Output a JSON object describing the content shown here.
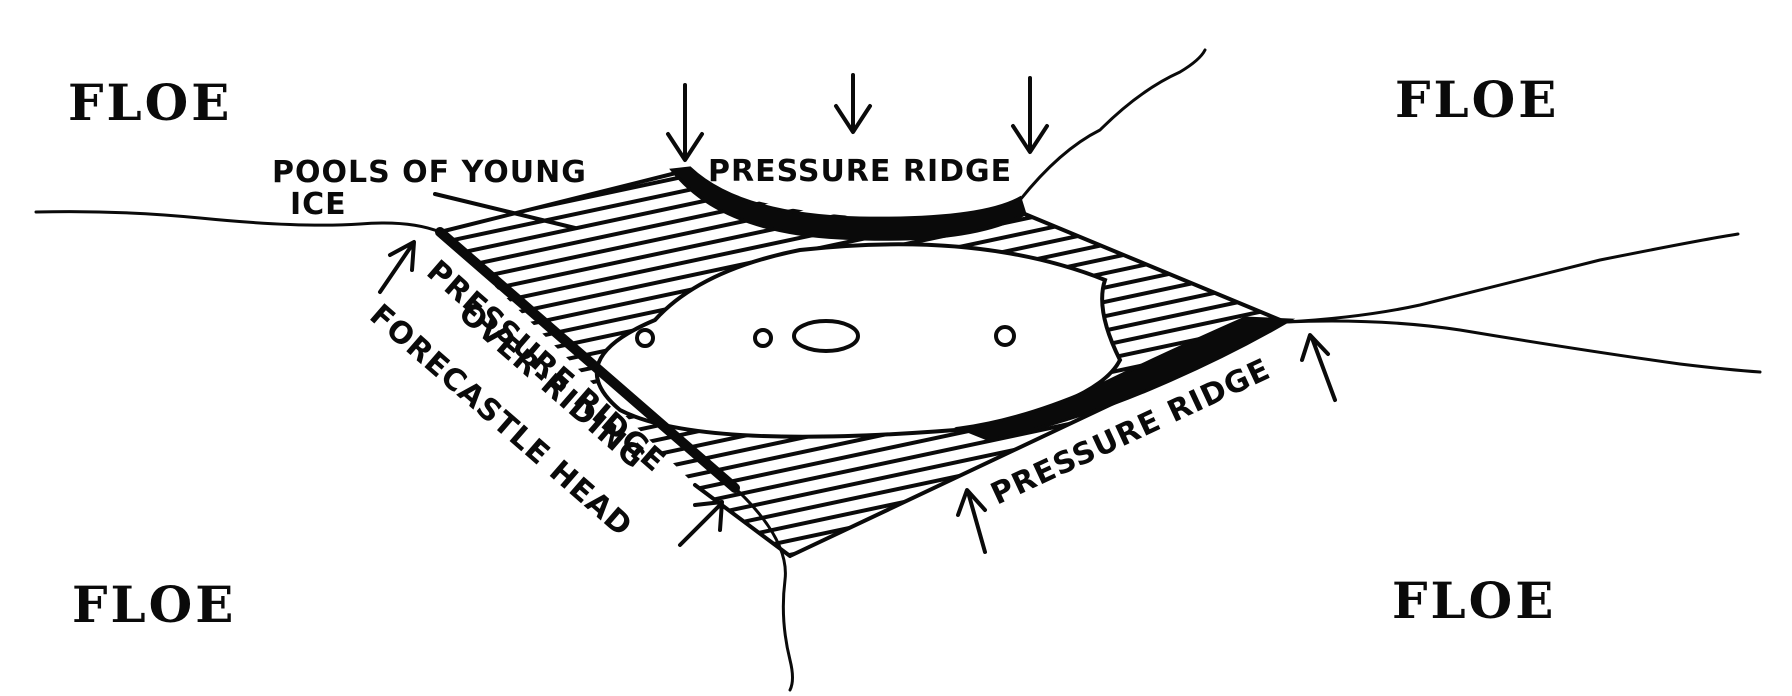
{
  "labels": {
    "floe_top_left": "FLOE",
    "floe_top_right": "FLOE",
    "floe_bottom_left": "FLOE",
    "floe_bottom_right": "FLOE",
    "pools_line1": "POOLS OF YOUNG",
    "pools_line2": "ICE",
    "pressure_ridge_top": "PRESSURE RIDGE",
    "pressure_ridge_left": "PRESSURE RIDGE",
    "over_riding": "OVER-RIDING",
    "forecastle_head": "FORECASTLE HEAD",
    "pressure_ridge_right": "PRESSURE RIDGE"
  },
  "colors": {
    "ink": "#0a0a0a",
    "paper": "#ffffff"
  }
}
